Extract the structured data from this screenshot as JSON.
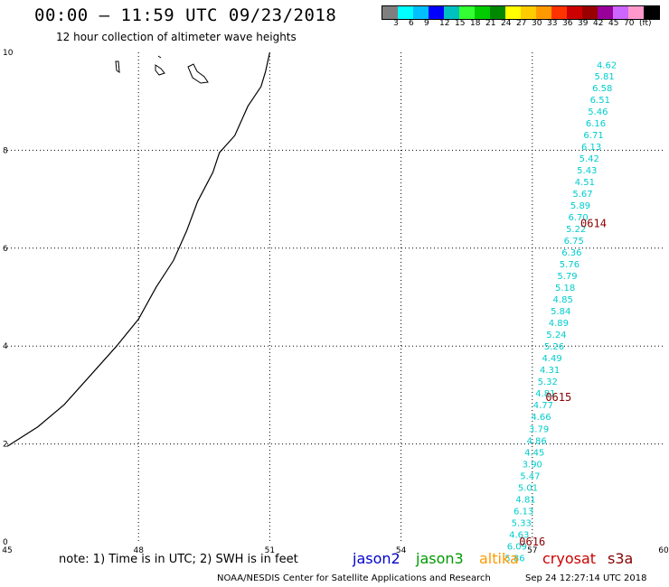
{
  "header": {
    "title": "00:00 – 11:59 UTC 09/23/2018",
    "subtitle": "12 hour collection of altimeter wave heights"
  },
  "colorbar": {
    "colors": [
      "#7f7f7f",
      "#00ffff",
      "#00bfff",
      "#0000ff",
      "#00c0c0",
      "#33ff33",
      "#00cc00",
      "#008800",
      "#ffff00",
      "#ffcc00",
      "#ff9900",
      "#ff3300",
      "#cc0000",
      "#990000",
      "#990099",
      "#cc66ff",
      "#ff99cc",
      "#000000"
    ],
    "labels": [
      "3",
      "6",
      "9",
      "12",
      "15",
      "18",
      "21",
      "24",
      "27",
      "30",
      "33",
      "36",
      "39",
      "42",
      "45",
      "70",
      "(ft)"
    ]
  },
  "map": {
    "x_ticks": [
      "45",
      "48",
      "51",
      "54",
      "57",
      "60"
    ],
    "y_ticks": [
      "0",
      "2",
      "4",
      "6",
      "8",
      "10"
    ],
    "x_range": [
      45,
      60
    ],
    "y_range": [
      0,
      10
    ],
    "time_labels": [
      {
        "text": "0614",
        "lon": 58.1,
        "lat": 6.5
      },
      {
        "text": "0615",
        "lon": 57.3,
        "lat": 2.95
      },
      {
        "text": "0616",
        "lon": 56.7,
        "lat": 0.0
      }
    ],
    "wave_heights": [
      {
        "lon": 58.7,
        "lat": 9.75,
        "value": "4.62"
      },
      {
        "lon": 58.65,
        "lat": 9.52,
        "value": "5.81"
      },
      {
        "lon": 58.6,
        "lat": 9.28,
        "value": "6.58"
      },
      {
        "lon": 58.55,
        "lat": 9.04,
        "value": "6.51"
      },
      {
        "lon": 58.5,
        "lat": 8.8,
        "value": "5.46"
      },
      {
        "lon": 58.45,
        "lat": 8.56,
        "value": "6.16"
      },
      {
        "lon": 58.4,
        "lat": 8.32,
        "value": "6.71"
      },
      {
        "lon": 58.35,
        "lat": 8.08,
        "value": "6.13"
      },
      {
        "lon": 58.3,
        "lat": 7.84,
        "value": "5.42"
      },
      {
        "lon": 58.25,
        "lat": 7.6,
        "value": "5.43"
      },
      {
        "lon": 58.2,
        "lat": 7.36,
        "value": "4.51"
      },
      {
        "lon": 58.15,
        "lat": 7.12,
        "value": "5.67"
      },
      {
        "lon": 58.1,
        "lat": 6.88,
        "value": "5.89"
      },
      {
        "lon": 58.05,
        "lat": 6.64,
        "value": "6.70"
      },
      {
        "lon": 58.0,
        "lat": 6.4,
        "value": "5.22"
      },
      {
        "lon": 57.95,
        "lat": 6.16,
        "value": "6.75"
      },
      {
        "lon": 57.9,
        "lat": 5.92,
        "value": "6.36"
      },
      {
        "lon": 57.85,
        "lat": 5.68,
        "value": "5.76"
      },
      {
        "lon": 57.8,
        "lat": 5.44,
        "value": "5.79"
      },
      {
        "lon": 57.75,
        "lat": 5.2,
        "value": "5.18"
      },
      {
        "lon": 57.7,
        "lat": 4.96,
        "value": "4.85"
      },
      {
        "lon": 57.65,
        "lat": 4.72,
        "value": "5.84"
      },
      {
        "lon": 57.6,
        "lat": 4.48,
        "value": "4.89"
      },
      {
        "lon": 57.55,
        "lat": 4.24,
        "value": "5.24"
      },
      {
        "lon": 57.5,
        "lat": 4.0,
        "value": "5.26"
      },
      {
        "lon": 57.45,
        "lat": 3.76,
        "value": "4.49"
      },
      {
        "lon": 57.4,
        "lat": 3.52,
        "value": "4.31"
      },
      {
        "lon": 57.35,
        "lat": 3.28,
        "value": "5.32"
      },
      {
        "lon": 57.3,
        "lat": 3.04,
        "value": "4.81"
      },
      {
        "lon": 57.25,
        "lat": 2.8,
        "value": "4.77"
      },
      {
        "lon": 57.2,
        "lat": 2.56,
        "value": "4.66"
      },
      {
        "lon": 57.15,
        "lat": 2.32,
        "value": "3.79"
      },
      {
        "lon": 57.1,
        "lat": 2.08,
        "value": "4.86"
      },
      {
        "lon": 57.05,
        "lat": 1.84,
        "value": "4.45"
      },
      {
        "lon": 57.0,
        "lat": 1.6,
        "value": "3.90"
      },
      {
        "lon": 56.95,
        "lat": 1.36,
        "value": "5.47"
      },
      {
        "lon": 56.9,
        "lat": 1.12,
        "value": "5.01"
      },
      {
        "lon": 56.85,
        "lat": 0.88,
        "value": "4.81"
      },
      {
        "lon": 56.8,
        "lat": 0.64,
        "value": "6.13"
      },
      {
        "lon": 56.75,
        "lat": 0.4,
        "value": "5.33"
      },
      {
        "lon": 56.7,
        "lat": 0.16,
        "value": "4.63"
      },
      {
        "lon": 56.65,
        "lat": -0.08,
        "value": "6.09"
      },
      {
        "lon": 56.6,
        "lat": -0.32,
        "value": "5.86"
      }
    ],
    "coastline": [
      [
        45,
        1.95
      ],
      [
        45.7,
        2.35
      ],
      [
        46.3,
        2.8
      ],
      [
        46.9,
        3.4
      ],
      [
        47.5,
        4.0
      ],
      [
        48.0,
        4.55
      ],
      [
        48.4,
        5.2
      ],
      [
        48.8,
        5.75
      ],
      [
        49.1,
        6.35
      ],
      [
        49.35,
        6.95
      ],
      [
        49.7,
        7.55
      ],
      [
        49.85,
        7.95
      ],
      [
        50.2,
        8.3
      ],
      [
        50.5,
        8.9
      ],
      [
        50.8,
        9.3
      ],
      [
        50.9,
        9.6
      ],
      [
        51.0,
        10.0
      ]
    ]
  },
  "footer": {
    "note": "note: 1) Time is in UTC; 2) SWH is in feet",
    "satellites": [
      {
        "name": "jason2",
        "color": "#0000cc"
      },
      {
        "name": "jason3",
        "color": "#009900"
      },
      {
        "name": "altika",
        "color": "#ff9900"
      },
      {
        "name": "cryosat",
        "color": "#cc0000"
      },
      {
        "name": "s3a",
        "color": "#880000"
      }
    ],
    "credit": "NOAA/NESDIS Center for Satellite Applications and Research",
    "timestamp": "Sep 24 12:27:14 UTC 2018"
  }
}
